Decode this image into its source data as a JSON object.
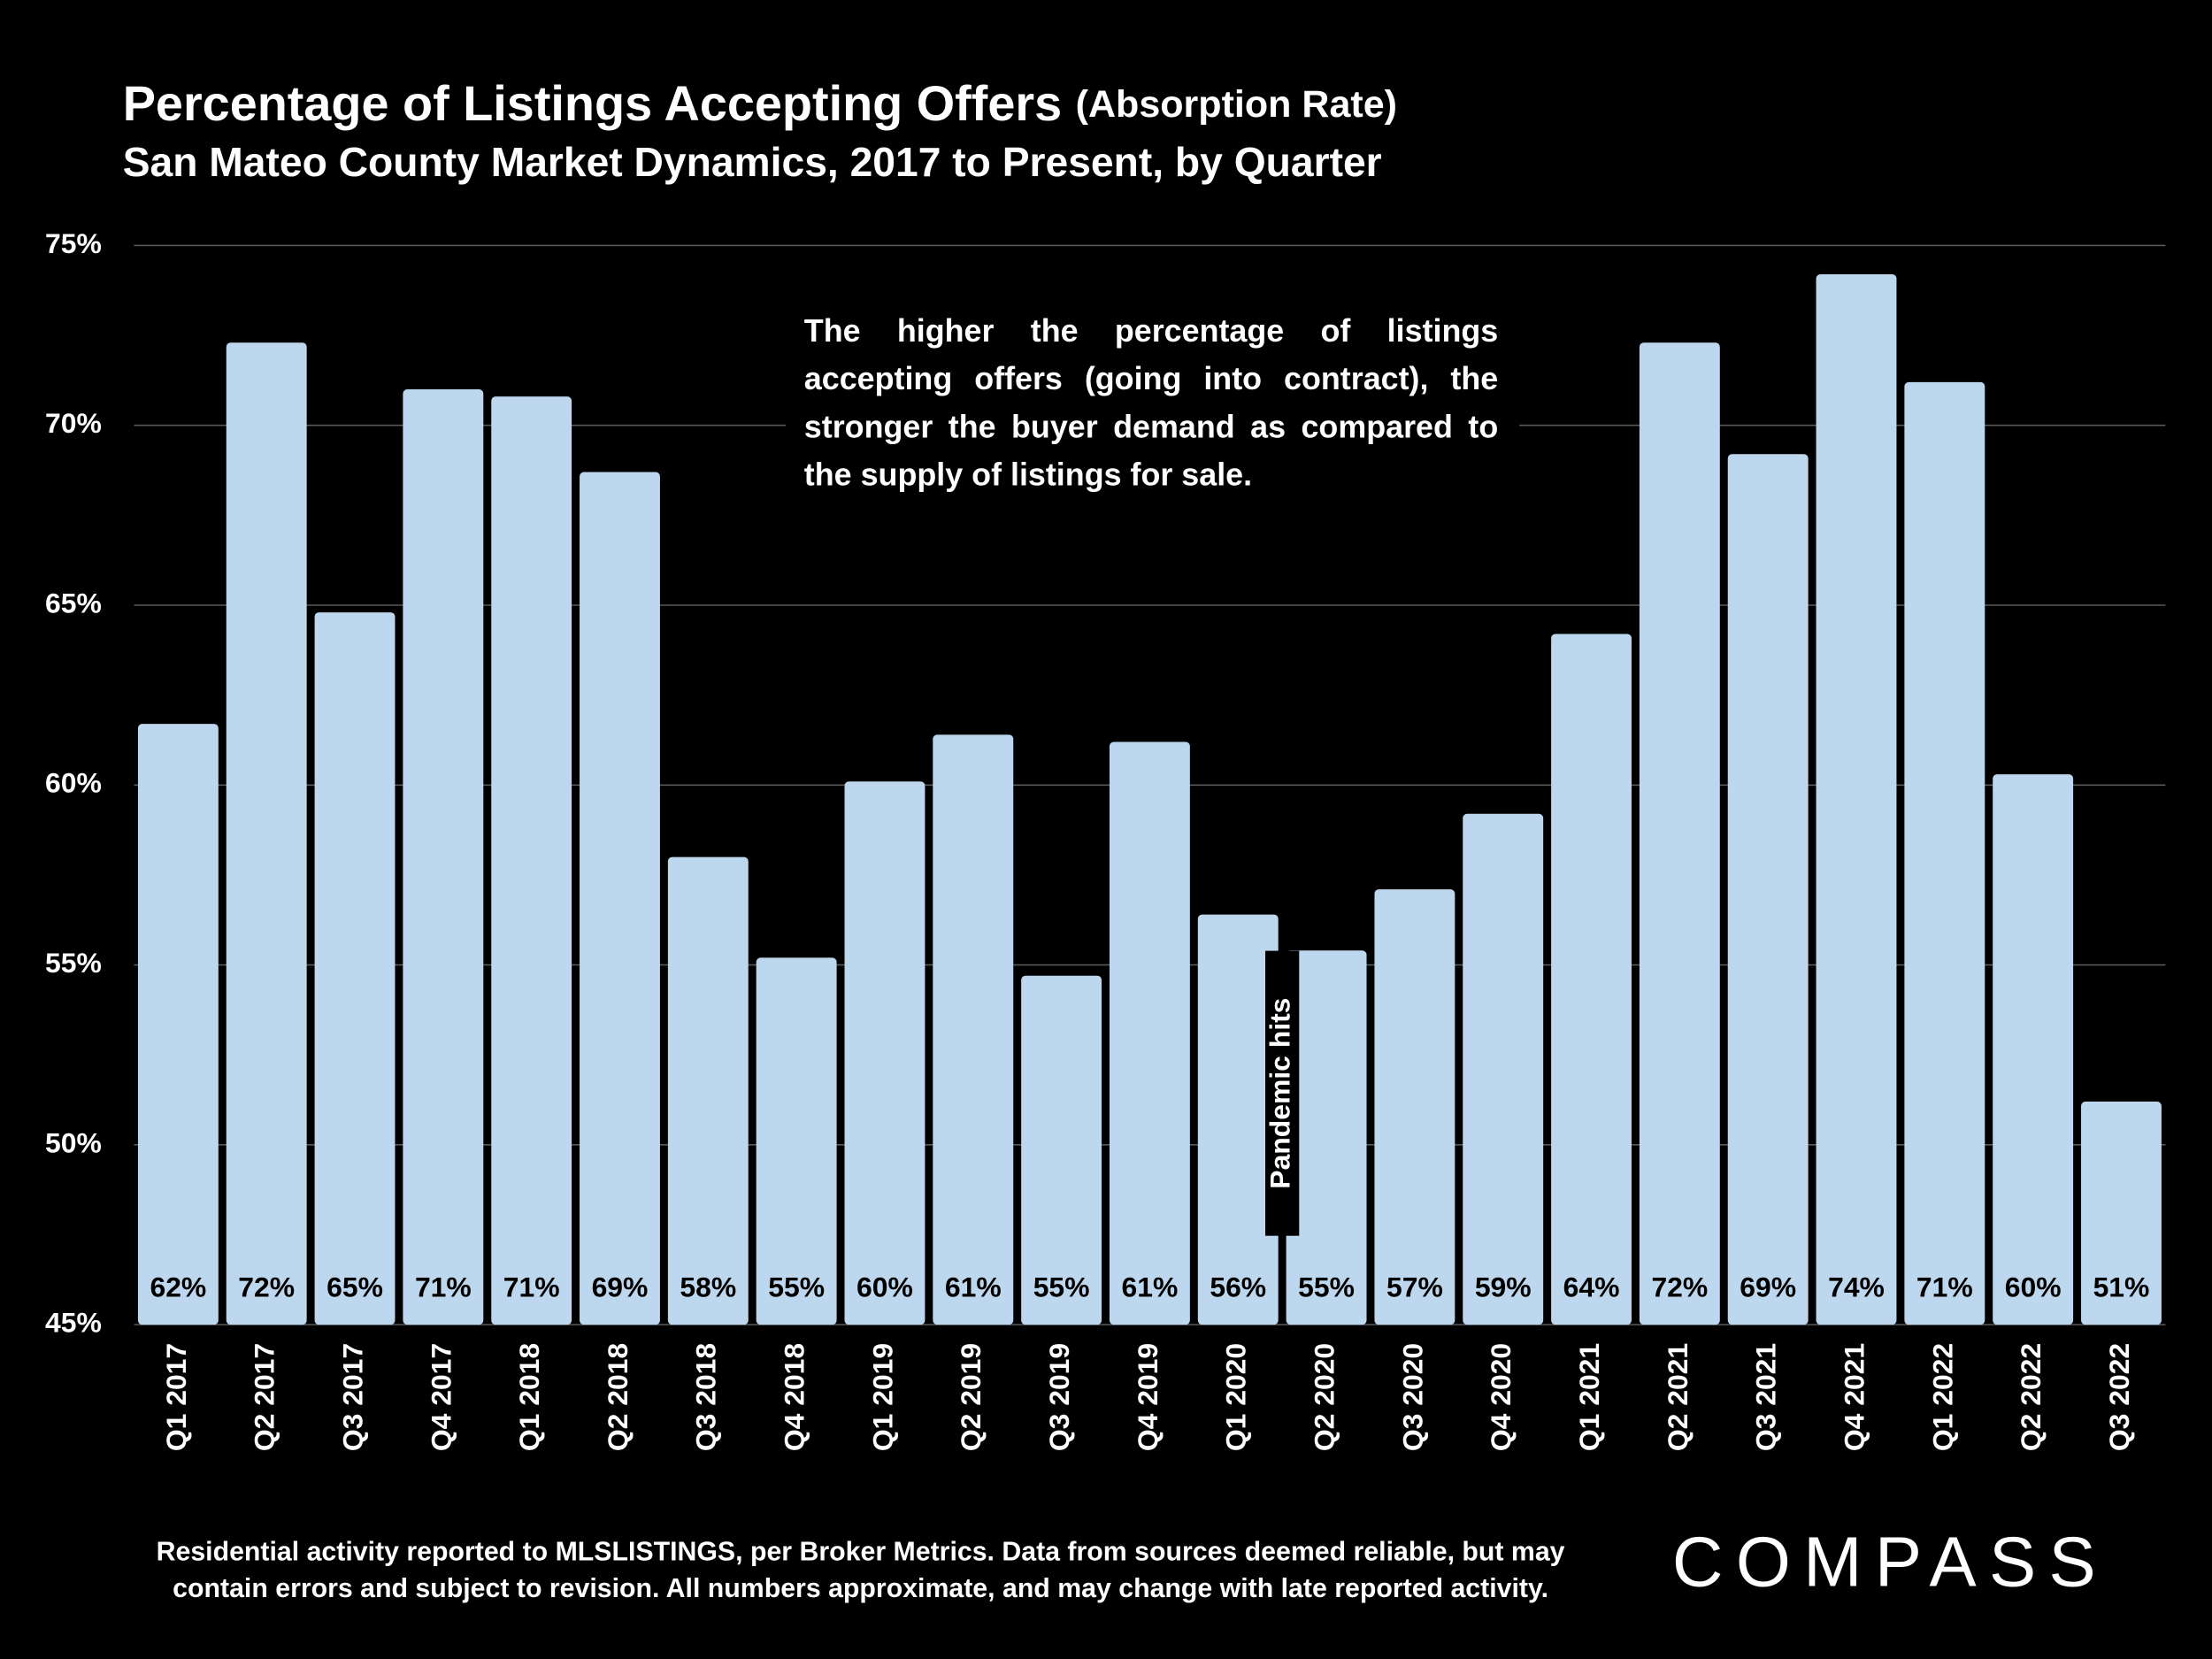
{
  "chart_data": {
    "type": "bar",
    "title": "Percentage of Listings Accepting Offers",
    "title_note": "(Absorption Rate)",
    "subtitle": "San Mateo County Market Dynamics, 2017 to Present, by Quarter",
    "annotation": "The higher the percentage of listings accepting offers (going into contract), the stronger the buyer demand as compared to the supply of listings for sale.",
    "event_label": "Pandemic hits",
    "footnote": [
      "Residential activity reported to MLSLISTINGS, per Broker Metrics. Data from sources deemed reliable, but may",
      "contain errors and subject to revision. All numbers approximate, and may change with late reported activity."
    ],
    "logo": "COMPASS",
    "categories": [
      "Q1 2017",
      "Q2 2017",
      "Q3 2017",
      "Q4 2017",
      "Q1 2018",
      "Q2 2018",
      "Q3 2018",
      "Q4 2018",
      "Q1 2019",
      "Q2 2019",
      "Q3 2019",
      "Q4 2019",
      "Q1 2020",
      "Q2 2020",
      "Q3 2020",
      "Q4 2020",
      "Q1 2021",
      "Q2 2021",
      "Q3 2021",
      "Q4 2021",
      "Q1 2022",
      "Q2 2022",
      "Q3 2022"
    ],
    "values": [
      61.7,
      72.3,
      64.8,
      71.0,
      70.8,
      68.7,
      58.0,
      55.2,
      60.1,
      61.4,
      54.7,
      61.2,
      56.4,
      55.4,
      57.1,
      59.2,
      64.2,
      72.3,
      69.2,
      74.2,
      71.2,
      60.3,
      51.2
    ],
    "value_labels": [
      "62%",
      "72%",
      "65%",
      "71%",
      "71%",
      "69%",
      "58%",
      "55%",
      "60%",
      "61%",
      "55%",
      "61%",
      "56%",
      "55%",
      "57%",
      "59%",
      "64%",
      "72%",
      "69%",
      "74%",
      "71%",
      "60%",
      "51%"
    ],
    "color": "#bdd7ee",
    "ylim": [
      45,
      75
    ],
    "yticks": [
      {
        "value": 45,
        "label": "45%"
      },
      {
        "value": 50,
        "label": "50%"
      },
      {
        "value": 55,
        "label": "55%"
      },
      {
        "value": 60,
        "label": "60%"
      },
      {
        "value": 65,
        "label": "65%"
      },
      {
        "value": 70,
        "label": "70%"
      },
      {
        "value": 75,
        "label": "75%"
      }
    ],
    "grid": true
  }
}
